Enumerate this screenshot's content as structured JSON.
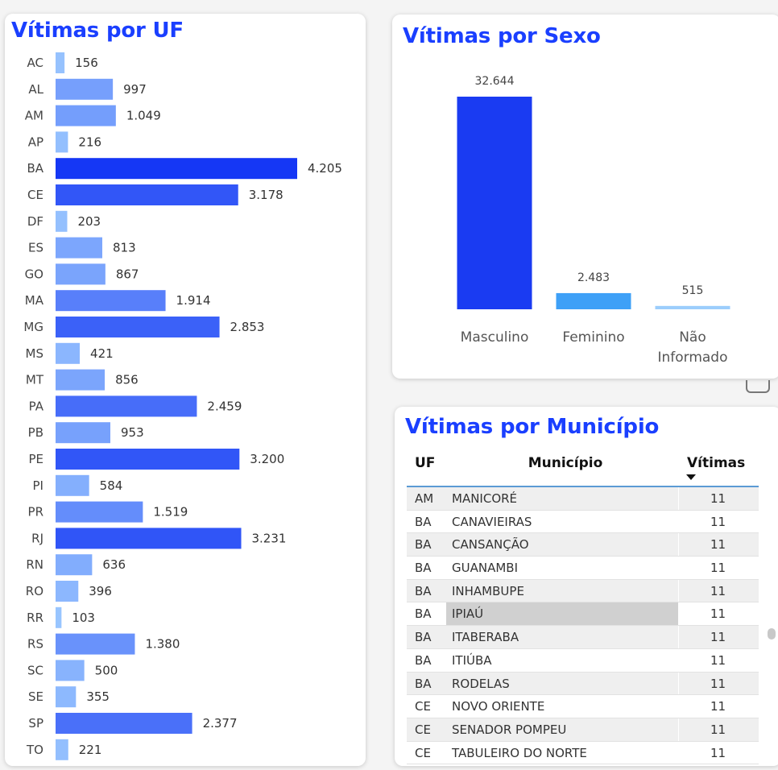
{
  "chart_data": [
    {
      "type": "bar",
      "orientation": "horizontal",
      "title": "Vítimas por UF",
      "categories": [
        "AC",
        "AL",
        "AM",
        "AP",
        "BA",
        "CE",
        "DF",
        "ES",
        "GO",
        "MA",
        "MG",
        "MS",
        "MT",
        "PA",
        "PB",
        "PE",
        "PI",
        "PR",
        "RJ",
        "RN",
        "RO",
        "RR",
        "RS",
        "SC",
        "SE",
        "SP",
        "TO"
      ],
      "values": [
        156,
        997,
        1049,
        216,
        4205,
        3178,
        203,
        813,
        867,
        1914,
        2853,
        421,
        856,
        2459,
        953,
        3200,
        584,
        1519,
        3231,
        636,
        396,
        103,
        1380,
        500,
        355,
        2377,
        221
      ],
      "value_labels": [
        "156",
        "997",
        "1.049",
        "216",
        "4.205",
        "3.178",
        "203",
        "813",
        "867",
        "1.914",
        "2.853",
        "421",
        "856",
        "2.459",
        "953",
        "3.200",
        "584",
        "1.519",
        "3.231",
        "636",
        "396",
        "103",
        "1.380",
        "500",
        "355",
        "2.377",
        "221"
      ],
      "color_scale": [
        "#9ecbff",
        "#1537f5"
      ]
    },
    {
      "type": "bar",
      "title": "Vítimas por Sexo",
      "categories": [
        "Masculino",
        "Feminino",
        "Não Informado"
      ],
      "category_lines": [
        [
          "Masculino"
        ],
        [
          "Feminino"
        ],
        [
          "Não",
          "Informado"
        ]
      ],
      "values": [
        32644,
        2483,
        515
      ],
      "value_labels": [
        "32.644",
        "2.483",
        "515"
      ],
      "colors": [
        "#1a3bf2",
        "#3ea0f7",
        "#9ccdfc"
      ]
    },
    {
      "type": "table",
      "title": "Vítimas por Município",
      "columns": [
        "UF",
        "Município",
        "Vítimas"
      ],
      "rows": [
        [
          "AM",
          "MANICORÉ",
          "11"
        ],
        [
          "BA",
          "CANAVIEIRAS",
          "11"
        ],
        [
          "BA",
          "CANSANÇÃO",
          "11"
        ],
        [
          "BA",
          "GUANAMBI",
          "11"
        ],
        [
          "BA",
          "INHAMBUPE",
          "11"
        ],
        [
          "BA",
          "IPIAÚ",
          "11"
        ],
        [
          "BA",
          "ITABERABA",
          "11"
        ],
        [
          "BA",
          "ITIÚBA",
          "11"
        ],
        [
          "BA",
          "RODELAS",
          "11"
        ],
        [
          "CE",
          "NOVO ORIENTE",
          "11"
        ],
        [
          "CE",
          "SENADOR POMPEU",
          "11"
        ],
        [
          "CE",
          "TABULEIRO DO NORTE",
          "11"
        ]
      ],
      "highlighted_row": 5
    }
  ]
}
